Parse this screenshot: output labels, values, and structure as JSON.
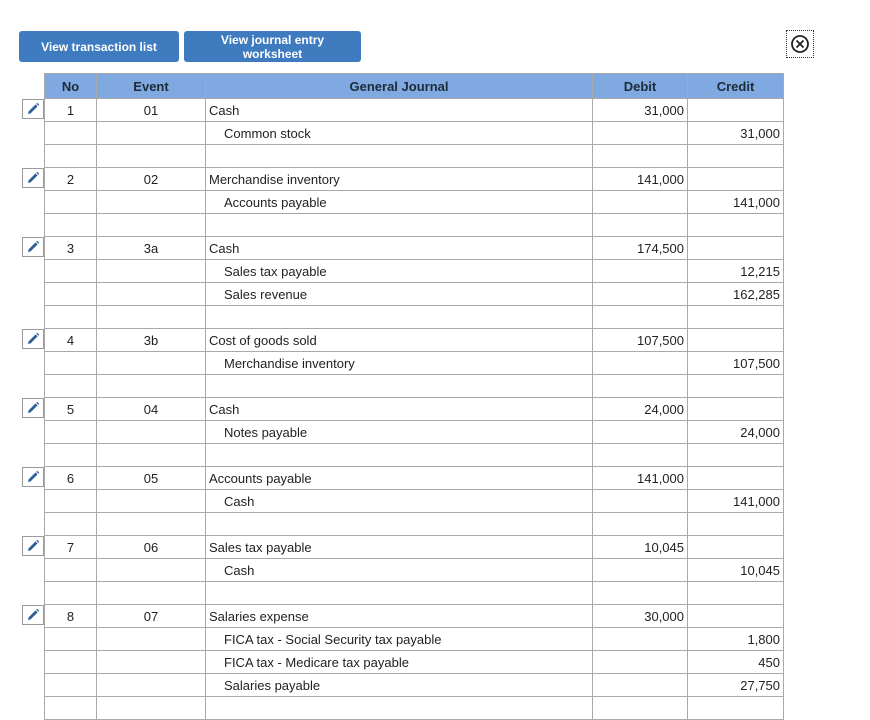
{
  "toolbar": {
    "view_transactions_label": "View transaction list",
    "view_worksheet_label": "View journal entry worksheet"
  },
  "table": {
    "headers": {
      "no": "No",
      "event": "Event",
      "journal": "General Journal",
      "debit": "Debit",
      "credit": "Credit"
    },
    "entries": [
      {
        "no": "1",
        "event": "01",
        "lines": [
          {
            "account": "Cash",
            "debit": "31,000",
            "credit": "",
            "indent": false
          },
          {
            "account": "Common stock",
            "debit": "",
            "credit": "31,000",
            "indent": true
          }
        ]
      },
      {
        "no": "2",
        "event": "02",
        "lines": [
          {
            "account": "Merchandise inventory",
            "debit": "141,000",
            "credit": "",
            "indent": false
          },
          {
            "account": "Accounts payable",
            "debit": "",
            "credit": "141,000",
            "indent": true
          }
        ]
      },
      {
        "no": "3",
        "event": "3a",
        "lines": [
          {
            "account": "Cash",
            "debit": "174,500",
            "credit": "",
            "indent": false
          },
          {
            "account": "Sales tax payable",
            "debit": "",
            "credit": "12,215",
            "indent": true
          },
          {
            "account": "Sales revenue",
            "debit": "",
            "credit": "162,285",
            "indent": true
          }
        ]
      },
      {
        "no": "4",
        "event": "3b",
        "lines": [
          {
            "account": "Cost of goods sold",
            "debit": "107,500",
            "credit": "",
            "indent": false
          },
          {
            "account": "Merchandise inventory",
            "debit": "",
            "credit": "107,500",
            "indent": true
          }
        ]
      },
      {
        "no": "5",
        "event": "04",
        "lines": [
          {
            "account": "Cash",
            "debit": "24,000",
            "credit": "",
            "indent": false
          },
          {
            "account": "Notes payable",
            "debit": "",
            "credit": "24,000",
            "indent": true
          }
        ]
      },
      {
        "no": "6",
        "event": "05",
        "lines": [
          {
            "account": "Accounts payable",
            "debit": "141,000",
            "credit": "",
            "indent": false
          },
          {
            "account": "Cash",
            "debit": "",
            "credit": "141,000",
            "indent": true
          }
        ]
      },
      {
        "no": "7",
        "event": "06",
        "lines": [
          {
            "account": "Sales tax payable",
            "debit": "10,045",
            "credit": "",
            "indent": false
          },
          {
            "account": "Cash",
            "debit": "",
            "credit": "10,045",
            "indent": true
          }
        ]
      },
      {
        "no": "8",
        "event": "07",
        "lines": [
          {
            "account": "Salaries expense",
            "debit": "30,000",
            "credit": "",
            "indent": false
          },
          {
            "account": "FICA tax - Social Security tax payable",
            "debit": "",
            "credit": "1,800",
            "indent": true
          },
          {
            "account": "FICA tax - Medicare tax payable",
            "debit": "",
            "credit": "450",
            "indent": true
          },
          {
            "account": "Salaries payable",
            "debit": "",
            "credit": "27,750",
            "indent": true
          }
        ]
      }
    ]
  },
  "icons": {
    "edit": "pencil-icon",
    "close": "close-circle-icon"
  },
  "colors": {
    "button": "#3f7bbf",
    "header": "#7fa9e0",
    "pencil": "#2d5f9a"
  }
}
